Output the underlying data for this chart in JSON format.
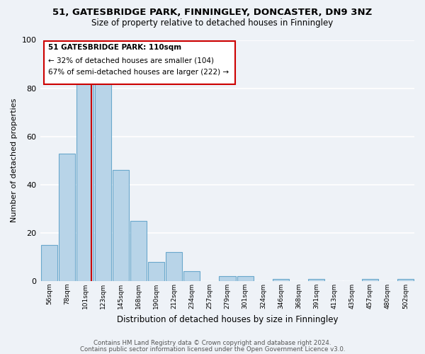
{
  "title": "51, GATESBRIDGE PARK, FINNINGLEY, DONCASTER, DN9 3NZ",
  "subtitle": "Size of property relative to detached houses in Finningley",
  "xlabel": "Distribution of detached houses by size in Finningley",
  "ylabel": "Number of detached properties",
  "bin_labels": [
    "56sqm",
    "78sqm",
    "101sqm",
    "123sqm",
    "145sqm",
    "168sqm",
    "190sqm",
    "212sqm",
    "234sqm",
    "257sqm",
    "279sqm",
    "301sqm",
    "324sqm",
    "346sqm",
    "368sqm",
    "391sqm",
    "413sqm",
    "435sqm",
    "457sqm",
    "480sqm",
    "502sqm"
  ],
  "bar_heights": [
    15,
    53,
    82,
    84,
    46,
    25,
    8,
    12,
    4,
    0,
    2,
    2,
    0,
    1,
    0,
    1,
    0,
    0,
    1,
    0,
    1
  ],
  "bar_color": "#b8d4e8",
  "bar_edge_color": "#6aa8cc",
  "ylim": [
    0,
    100
  ],
  "yticks": [
    0,
    20,
    40,
    60,
    80,
    100
  ],
  "annotation_title": "51 GATESBRIDGE PARK: 110sqm",
  "annotation_line1": "← 32% of detached houses are smaller (104)",
  "annotation_line2": "67% of semi-detached houses are larger (222) →",
  "annotation_box_color": "#ffffff",
  "annotation_box_edge": "#cc0000",
  "red_line_color": "#cc0000",
  "footer1": "Contains HM Land Registry data © Crown copyright and database right 2024.",
  "footer2": "Contains public sector information licensed under the Open Government Licence v3.0.",
  "bg_color": "#eef2f7",
  "grid_color": "#ffffff"
}
